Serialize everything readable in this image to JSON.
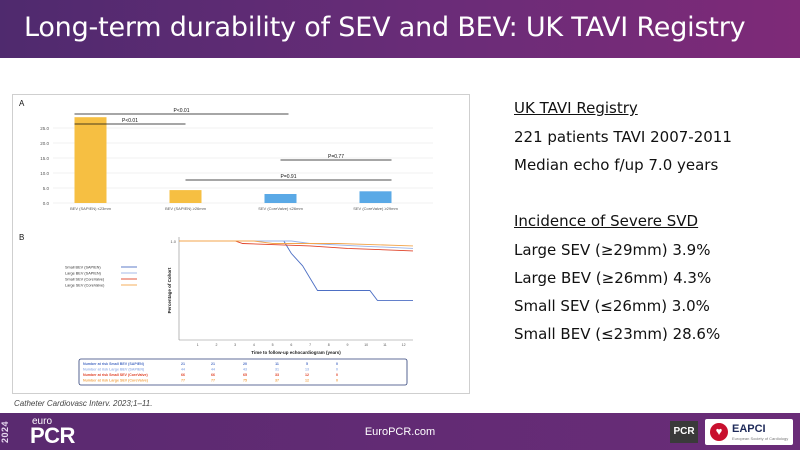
{
  "header": {
    "title": "Long-term durability of SEV and BEV: UK TAVI Registry"
  },
  "figure": {
    "panel_a_label": "A",
    "panel_b_label": "B",
    "chart_data": [
      {
        "type": "bar",
        "panel": "A",
        "categories": [
          "BEV (SAPIEN) ≤23mm",
          "BEV (SAPIEN) ≥26mm",
          "SEV (CoreValve) ≤26mm",
          "SEV (CoreValve) ≥29mm"
        ],
        "values": [
          28.6,
          4.3,
          3.0,
          3.9
        ],
        "colors": [
          "#f6bf42",
          "#f6bf42",
          "#5aa9e6",
          "#5aa9e6"
        ],
        "ylim": [
          0,
          30
        ],
        "yticks": [
          "0.0",
          "5.0",
          "10.0",
          "15.0",
          "20.0",
          "25.0"
        ],
        "ytick_values": [
          0,
          5,
          10,
          15,
          20,
          25
        ],
        "comparisons": [
          {
            "label": "P<0.01",
            "from": 0,
            "to": 2
          },
          {
            "label": "P<0.01",
            "from": 0,
            "to": 1
          },
          {
            "label": "P=0.77",
            "from": 2,
            "to": 3
          },
          {
            "label": "P=0.91",
            "from": 1,
            "to": 3
          }
        ]
      },
      {
        "type": "line",
        "panel": "B",
        "ylabel": "Percentage of Cohort",
        "xlabel": "Time to follow-up echocardiogram (years)",
        "ytop_label": "1.0",
        "xticks": [
          0,
          1,
          2,
          3,
          4,
          5,
          6,
          7,
          8,
          9,
          10,
          11,
          12
        ],
        "xlim": [
          0,
          12.5
        ],
        "ylim": [
          0.6,
          1.0
        ],
        "series": [
          {
            "name": "Small BEV (SAPIEN)",
            "color": "#4d6fc4",
            "points": [
              [
                0,
                1.0
              ],
              [
                5.6,
                1.0
              ],
              [
                6.0,
                0.95
              ],
              [
                6.6,
                0.9
              ],
              [
                7.0,
                0.85
              ],
              [
                7.4,
                0.8
              ],
              [
                8.0,
                0.8
              ],
              [
                10.2,
                0.8
              ],
              [
                10.6,
                0.76
              ],
              [
                12.5,
                0.76
              ]
            ]
          },
          {
            "name": "Large BEV (SAPIEN)",
            "color": "#9bb4e8",
            "points": [
              [
                0,
                1.0
              ],
              [
                6.0,
                1.0
              ],
              [
                7.0,
                0.99
              ],
              [
                9.5,
                0.98
              ],
              [
                12.5,
                0.97
              ]
            ]
          },
          {
            "name": "Small SEV (CoreValve)",
            "color": "#e0442a",
            "points": [
              [
                0,
                1.0
              ],
              [
                3.0,
                1.0
              ],
              [
                3.4,
                0.99
              ],
              [
                7.0,
                0.98
              ],
              [
                9.0,
                0.97
              ],
              [
                12.5,
                0.96
              ]
            ]
          },
          {
            "name": "Large SEV (CoreValve)",
            "color": "#f3a64c",
            "points": [
              [
                0,
                1.0
              ],
              [
                4.0,
                1.0
              ],
              [
                5.0,
                0.99
              ],
              [
                8.5,
                0.99
              ],
              [
                12.5,
                0.98
              ]
            ]
          }
        ],
        "risk_table": {
          "rows": [
            {
              "label": "Number at risk Small BEV (SAPIEN)",
              "color": "#4d6fc4",
              "values": [
                "21",
                "21",
                "20",
                "11",
                "5",
                "0"
              ]
            },
            {
              "label": "Number at risk Large BEV (SAPIEN)",
              "color": "#9bb4e8",
              "values": [
                "44",
                "44",
                "43",
                "31",
                "13",
                "0"
              ]
            },
            {
              "label": "Number at risk Small SEV (CoreValve)",
              "color": "#e0442a",
              "values": [
                "66",
                "66",
                "65",
                "33",
                "12",
                "0"
              ]
            },
            {
              "label": "Number at risk Large SEV (CoreValve)",
              "color": "#f3a64c",
              "values": [
                "77",
                "77",
                "75",
                "37",
                "12",
                "0"
              ]
            }
          ]
        }
      }
    ]
  },
  "citation": "Catheter Cardiovasc Interv. 2023;1–11.",
  "sidebar": {
    "registry_title": "UK TAVI Registry",
    "patients": "221 patients TAVI 2007-2011",
    "followup": "Median echo f/up 7.0 years",
    "svd_title": "Incidence of Severe SVD",
    "items": [
      "Large SEV (≥29mm) 3.9%",
      "Large BEV (≥26mm) 4.3%",
      "Small SEV (≤26mm) 3.0%",
      "Small BEV (≤23mm) 28.6%"
    ]
  },
  "footer": {
    "year": "2024",
    "brand_small": "euro",
    "brand_main": "PCR",
    "site": "EuroPCR.com",
    "badge": "PCR",
    "partner": "EAPCI",
    "partner_sub": "European Society of Cardiology"
  }
}
